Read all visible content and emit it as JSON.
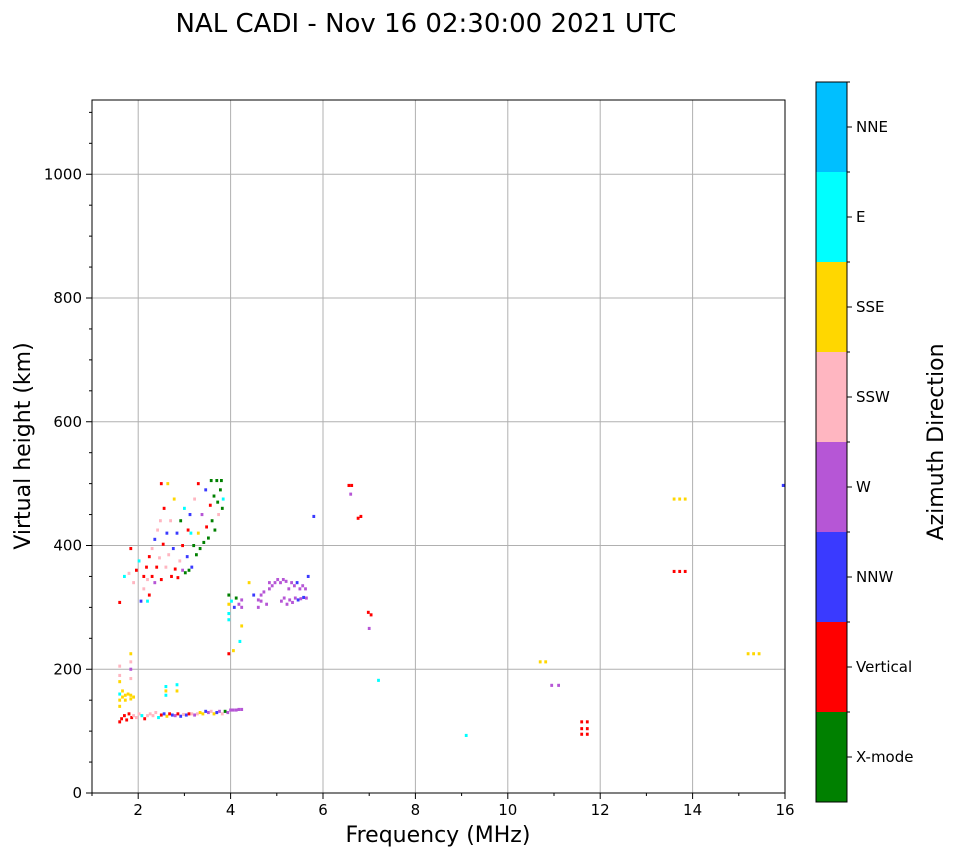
{
  "chart_data": {
    "type": "scatter",
    "title": "NAL CADI - Nov 16 02:30:00 2021 UTC",
    "xlabel": "Frequency (MHz)",
    "ylabel": "Virtual height (km)",
    "xlim": [
      1,
      16
    ],
    "ylim": [
      0,
      1120
    ],
    "xticks": [
      2,
      4,
      6,
      8,
      10,
      12,
      14,
      16
    ],
    "yticks": [
      0,
      200,
      400,
      600,
      800,
      1000
    ],
    "grid": true,
    "colorbar": {
      "label": "Azimuth Direction",
      "categories": [
        "X-mode",
        "Vertical",
        "NNW",
        "W",
        "SSW",
        "SSE",
        "E",
        "NNE"
      ],
      "colors": [
        "#008000",
        "#ff0000",
        "#3a3aff",
        "#b656d6",
        "#ffb6c1",
        "#ffd700",
        "#00ffff",
        "#00bfff"
      ]
    },
    "cell": {
      "df": 0.06,
      "dh": 5
    },
    "points": [
      [
        1.6,
        115,
        "Vertical"
      ],
      [
        1.64,
        120,
        "Vertical"
      ],
      [
        1.7,
        125,
        "Vertical"
      ],
      [
        1.75,
        118,
        "Vertical"
      ],
      [
        1.8,
        128,
        "Vertical"
      ],
      [
        1.86,
        122,
        "Vertical"
      ],
      [
        1.9,
        125,
        "SSW"
      ],
      [
        1.96,
        122,
        "SSW"
      ],
      [
        2.02,
        128,
        "SSW"
      ],
      [
        2.08,
        125,
        "E"
      ],
      [
        2.14,
        120,
        "Vertical"
      ],
      [
        2.2,
        125,
        "SSW"
      ],
      [
        2.26,
        128,
        "SSW"
      ],
      [
        2.32,
        125,
        "SSW"
      ],
      [
        2.38,
        130,
        "SSW"
      ],
      [
        2.44,
        122,
        "E"
      ],
      [
        2.5,
        126,
        "Vertical"
      ],
      [
        2.56,
        128,
        "NNW"
      ],
      [
        2.62,
        124,
        "SSE"
      ],
      [
        2.68,
        128,
        "Vertical"
      ],
      [
        2.74,
        126,
        "NNW"
      ],
      [
        2.8,
        125,
        "W"
      ],
      [
        2.86,
        128,
        "Vertical"
      ],
      [
        2.92,
        124,
        "NNW"
      ],
      [
        2.98,
        127,
        "SSW"
      ],
      [
        3.04,
        126,
        "NNW"
      ],
      [
        3.1,
        128,
        "Vertical"
      ],
      [
        3.16,
        128,
        "SSW"
      ],
      [
        3.22,
        126,
        "W"
      ],
      [
        3.28,
        128,
        "SSW"
      ],
      [
        3.34,
        130,
        "SSE"
      ],
      [
        3.4,
        128,
        "SSE"
      ],
      [
        3.46,
        132,
        "NNW"
      ],
      [
        3.52,
        130,
        "W"
      ],
      [
        3.58,
        132,
        "SSW"
      ],
      [
        3.64,
        128,
        "SSE"
      ],
      [
        3.7,
        130,
        "NNW"
      ],
      [
        3.76,
        132,
        "W"
      ],
      [
        3.82,
        128,
        "SSW"
      ],
      [
        3.88,
        132,
        "X-mode"
      ],
      [
        3.94,
        130,
        "W"
      ],
      [
        4.0,
        134,
        "W"
      ],
      [
        4.06,
        134,
        "W"
      ],
      [
        4.12,
        134,
        "W"
      ],
      [
        4.18,
        135,
        "W"
      ],
      [
        4.24,
        135,
        "W"
      ],
      [
        1.6,
        140,
        "SSE"
      ],
      [
        1.6,
        150,
        "SSE"
      ],
      [
        1.6,
        160,
        "E"
      ],
      [
        1.66,
        155,
        "SSE"
      ],
      [
        1.66,
        165,
        "SSE"
      ],
      [
        1.72,
        150,
        "SSE"
      ],
      [
        1.72,
        158,
        "SSE"
      ],
      [
        1.78,
        160,
        "SSE"
      ],
      [
        1.84,
        152,
        "SSE"
      ],
      [
        1.84,
        158,
        "SSE"
      ],
      [
        1.9,
        155,
        "SSE"
      ],
      [
        1.6,
        180,
        "SSE"
      ],
      [
        1.6,
        190,
        "SSW"
      ],
      [
        1.6,
        205,
        "SSW"
      ],
      [
        1.84,
        200,
        "W"
      ],
      [
        1.84,
        212,
        "SSW"
      ],
      [
        1.84,
        225,
        "SSE"
      ],
      [
        1.84,
        185,
        "SSW"
      ],
      [
        2.6,
        165,
        "SSE"
      ],
      [
        2.6,
        158,
        "E"
      ],
      [
        2.84,
        175,
        "E"
      ],
      [
        2.84,
        165,
        "SSE"
      ],
      [
        2.6,
        172,
        "E"
      ],
      [
        1.6,
        308,
        "Vertical"
      ],
      [
        1.7,
        350,
        "E"
      ],
      [
        1.9,
        340,
        "SSW"
      ],
      [
        1.8,
        355,
        "SSW"
      ],
      [
        1.84,
        395,
        "Vertical"
      ],
      [
        1.96,
        360,
        "Vertical"
      ],
      [
        2.02,
        375,
        "E"
      ],
      [
        2.06,
        310,
        "NNW"
      ],
      [
        2.12,
        330,
        "SSW"
      ],
      [
        2.12,
        350,
        "Vertical"
      ],
      [
        2.18,
        365,
        "Vertical"
      ],
      [
        2.2,
        345,
        "SSW"
      ],
      [
        2.24,
        320,
        "Vertical"
      ],
      [
        2.24,
        382,
        "Vertical"
      ],
      [
        2.3,
        395,
        "SSW"
      ],
      [
        2.3,
        350,
        "Vertical"
      ],
      [
        2.36,
        340,
        "W"
      ],
      [
        2.36,
        410,
        "NNW"
      ],
      [
        2.4,
        365,
        "Vertical"
      ],
      [
        2.42,
        425,
        "SSW"
      ],
      [
        2.46,
        380,
        "SSW"
      ],
      [
        2.48,
        440,
        "SSW"
      ],
      [
        2.5,
        345,
        "Vertical"
      ],
      [
        2.54,
        402,
        "Vertical"
      ],
      [
        2.56,
        460,
        "Vertical"
      ],
      [
        2.6,
        365,
        "SSW"
      ],
      [
        2.62,
        420,
        "NNW"
      ],
      [
        2.66,
        385,
        "SSW"
      ],
      [
        2.7,
        440,
        "SSW"
      ],
      [
        2.72,
        350,
        "Vertical"
      ],
      [
        2.76,
        395,
        "NNW"
      ],
      [
        2.78,
        475,
        "SSE"
      ],
      [
        2.8,
        362,
        "Vertical"
      ],
      [
        2.84,
        420,
        "NNW"
      ],
      [
        2.86,
        348,
        "Vertical"
      ],
      [
        2.9,
        375,
        "SSW"
      ],
      [
        2.92,
        440,
        "X-mode"
      ],
      [
        2.96,
        400,
        "Vertical"
      ],
      [
        2.96,
        360,
        "W"
      ],
      [
        3.0,
        460,
        "E"
      ],
      [
        3.02,
        356,
        "X-mode"
      ],
      [
        3.06,
        382,
        "NNW"
      ],
      [
        3.08,
        425,
        "Vertical"
      ],
      [
        3.1,
        360,
        "X-mode"
      ],
      [
        3.12,
        450,
        "NNW"
      ],
      [
        3.16,
        365,
        "NNW"
      ],
      [
        3.2,
        400,
        "X-mode"
      ],
      [
        3.22,
        475,
        "SSW"
      ],
      [
        3.26,
        385,
        "X-mode"
      ],
      [
        3.3,
        420,
        "SSE"
      ],
      [
        3.3,
        500,
        "Vertical"
      ],
      [
        3.34,
        395,
        "X-mode"
      ],
      [
        3.38,
        450,
        "W"
      ],
      [
        3.42,
        405,
        "X-mode"
      ],
      [
        3.46,
        490,
        "NNW"
      ],
      [
        3.48,
        430,
        "Vertical"
      ],
      [
        3.52,
        412,
        "X-mode"
      ],
      [
        3.56,
        465,
        "Vertical"
      ],
      [
        3.58,
        505,
        "X-mode"
      ],
      [
        3.6,
        440,
        "X-mode"
      ],
      [
        3.64,
        480,
        "X-mode"
      ],
      [
        3.66,
        425,
        "X-mode"
      ],
      [
        3.7,
        505,
        "X-mode"
      ],
      [
        3.72,
        470,
        "X-mode"
      ],
      [
        3.74,
        450,
        "SSW"
      ],
      [
        3.78,
        490,
        "X-mode"
      ],
      [
        3.8,
        505,
        "X-mode"
      ],
      [
        3.82,
        460,
        "X-mode"
      ],
      [
        3.84,
        475,
        "E"
      ],
      [
        2.5,
        500,
        "Vertical"
      ],
      [
        2.64,
        500,
        "SSE"
      ],
      [
        3.14,
        420,
        "E"
      ],
      [
        2.2,
        310,
        "E"
      ],
      [
        3.96,
        225,
        "Vertical"
      ],
      [
        3.96,
        305,
        "SSE"
      ],
      [
        3.96,
        290,
        "E"
      ],
      [
        3.96,
        280,
        "E"
      ],
      [
        3.96,
        320,
        "X-mode"
      ],
      [
        4.02,
        310,
        "E"
      ],
      [
        4.08,
        300,
        "NNW"
      ],
      [
        4.12,
        315,
        "X-mode"
      ],
      [
        4.18,
        305,
        "W"
      ],
      [
        4.24,
        300,
        "W"
      ],
      [
        4.24,
        312,
        "W"
      ],
      [
        4.06,
        230,
        "SSE"
      ],
      [
        4.24,
        270,
        "SSE"
      ],
      [
        4.2,
        245,
        "E"
      ],
      [
        4.4,
        340,
        "SSE"
      ],
      [
        4.5,
        320,
        "NNW"
      ],
      [
        4.6,
        300,
        "W"
      ],
      [
        4.66,
        310,
        "W"
      ],
      [
        4.72,
        325,
        "W"
      ],
      [
        4.78,
        305,
        "W"
      ],
      [
        4.84,
        330,
        "W"
      ],
      [
        4.84,
        340,
        "W"
      ],
      [
        4.9,
        335,
        "W"
      ],
      [
        4.96,
        340,
        "W"
      ],
      [
        5.02,
        345,
        "W"
      ],
      [
        5.08,
        340,
        "W"
      ],
      [
        5.14,
        345,
        "W"
      ],
      [
        5.2,
        342,
        "W"
      ],
      [
        5.26,
        330,
        "W"
      ],
      [
        5.32,
        340,
        "W"
      ],
      [
        5.38,
        335,
        "W"
      ],
      [
        5.44,
        340,
        "NNW"
      ],
      [
        5.5,
        330,
        "W"
      ],
      [
        5.56,
        335,
        "W"
      ],
      [
        5.62,
        330,
        "W"
      ],
      [
        5.68,
        350,
        "NNW"
      ],
      [
        5.1,
        310,
        "W"
      ],
      [
        5.16,
        315,
        "W"
      ],
      [
        5.22,
        305,
        "W"
      ],
      [
        5.28,
        312,
        "W"
      ],
      [
        5.34,
        308,
        "W"
      ],
      [
        5.4,
        315,
        "W"
      ],
      [
        5.46,
        312,
        "NNW"
      ],
      [
        5.52,
        314,
        "W"
      ],
      [
        5.58,
        316,
        "NNW"
      ],
      [
        5.64,
        315,
        "W"
      ],
      [
        4.6,
        312,
        "W"
      ],
      [
        4.66,
        320,
        "W"
      ],
      [
        5.8,
        447,
        "NNW"
      ],
      [
        6.56,
        497,
        "Vertical"
      ],
      [
        6.62,
        497,
        "Vertical"
      ],
      [
        6.6,
        483,
        "W"
      ],
      [
        6.76,
        444,
        "Vertical"
      ],
      [
        6.82,
        447,
        "Vertical"
      ],
      [
        6.98,
        292,
        "Vertical"
      ],
      [
        7.04,
        288,
        "Vertical"
      ],
      [
        7.0,
        266,
        "W"
      ],
      [
        7.2,
        182,
        "E"
      ],
      [
        9.1,
        93,
        "E"
      ],
      [
        10.7,
        212,
        "SSE"
      ],
      [
        10.82,
        212,
        "SSE"
      ],
      [
        10.95,
        174,
        "W"
      ],
      [
        11.1,
        174,
        "W"
      ],
      [
        11.6,
        95,
        "Vertical"
      ],
      [
        11.72,
        95,
        "Vertical"
      ],
      [
        11.6,
        104,
        "Vertical"
      ],
      [
        11.72,
        104,
        "Vertical"
      ],
      [
        11.6,
        115,
        "Vertical"
      ],
      [
        11.72,
        115,
        "Vertical"
      ],
      [
        13.6,
        475,
        "SSE"
      ],
      [
        13.72,
        475,
        "SSE"
      ],
      [
        13.84,
        475,
        "SSE"
      ],
      [
        13.6,
        358,
        "Vertical"
      ],
      [
        13.72,
        358,
        "Vertical"
      ],
      [
        13.84,
        358,
        "Vertical"
      ],
      [
        15.2,
        225,
        "SSE"
      ],
      [
        15.32,
        225,
        "SSE"
      ],
      [
        15.44,
        225,
        "SSE"
      ],
      [
        15.96,
        497,
        "NNW"
      ]
    ]
  }
}
